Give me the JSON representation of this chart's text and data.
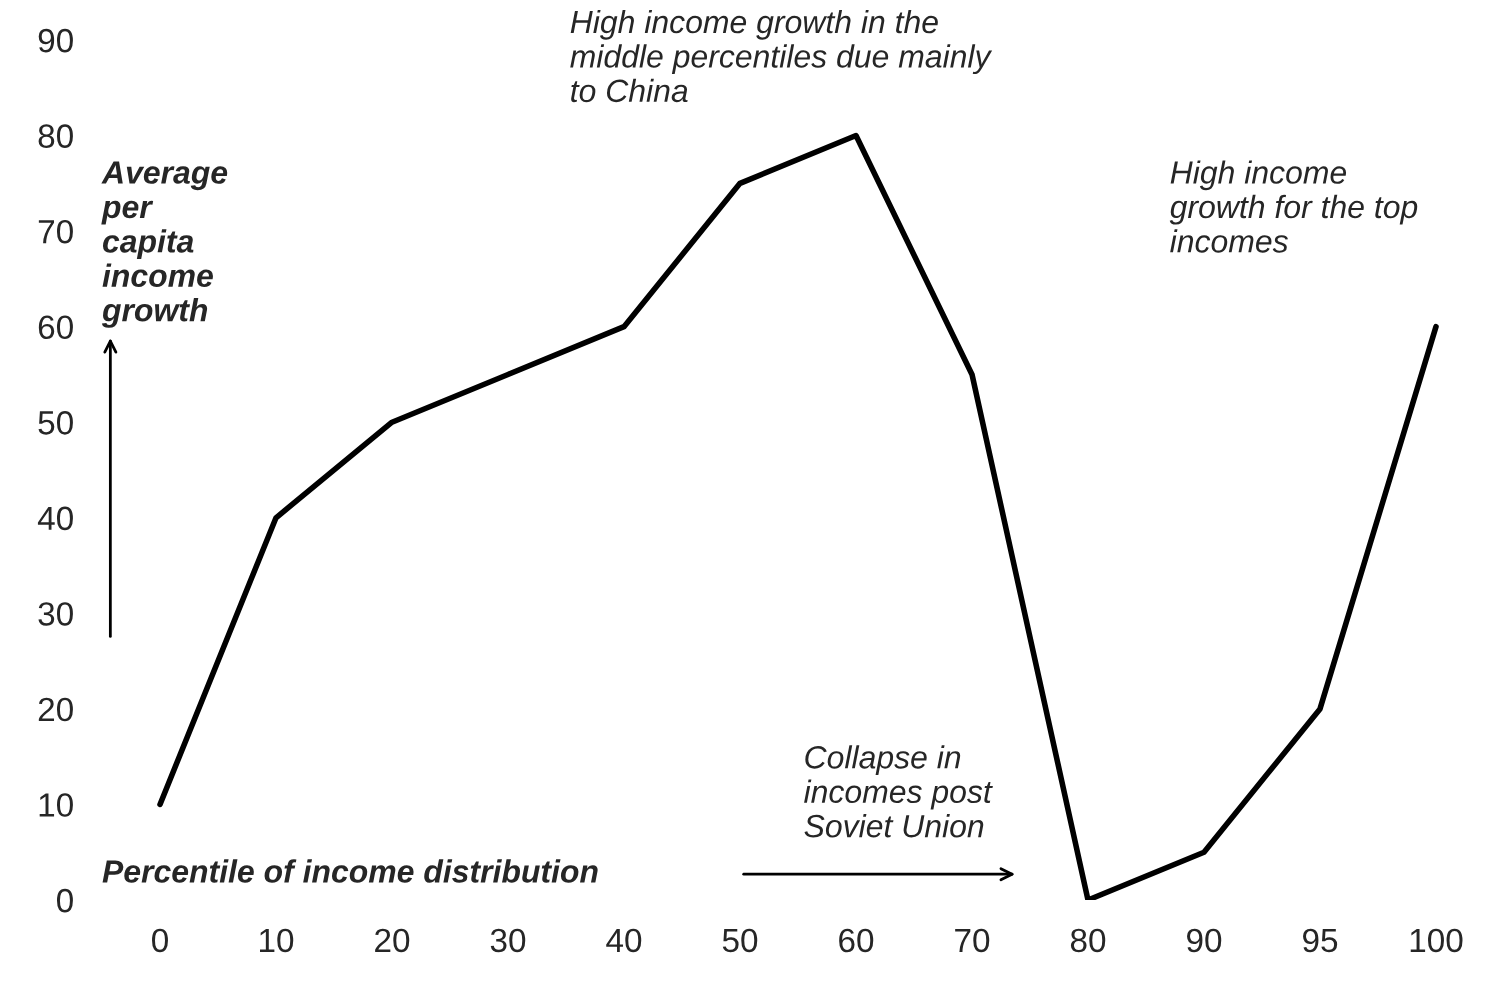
{
  "chart_data": {
    "type": "line",
    "categories": [
      "0",
      "10",
      "20",
      "30",
      "40",
      "50",
      "60",
      "70",
      "80",
      "90",
      "95",
      "100"
    ],
    "series": [
      {
        "color": "#000000",
        "values": [
          10,
          40,
          50,
          55,
          60,
          75,
          80,
          55,
          0,
          5,
          20,
          60
        ]
      }
    ],
    "ylim": [
      0,
      90
    ],
    "yticks": [
      0,
      10,
      20,
      30,
      40,
      50,
      60,
      70,
      80,
      90
    ],
    "xlabel": "Percentile of income distribution",
    "ylabel": "Average\nper\ncapita\nincome\ngrowth",
    "annotations": [
      "High income growth in the\nmiddle percentiles due mainly\nto China",
      "High income\ngrowth for the top\nincomes",
      "Collapse in\nincomes post\nSoviet Union"
    ]
  }
}
